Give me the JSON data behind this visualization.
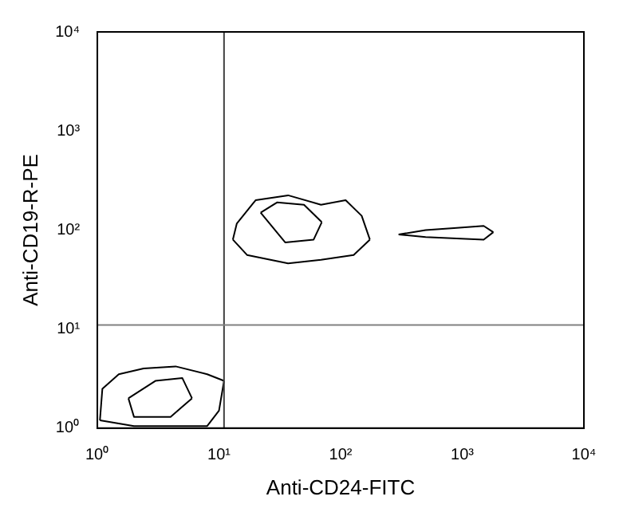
{
  "chart_data": {
    "type": "line",
    "xlabel": "Anti-CD24-FITC",
    "ylabel": "Anti-CD19-R-PE",
    "log": "xy",
    "grid": false,
    "legend": false,
    "marker": "none",
    "line_style": "solid",
    "xlim": [
      1,
      10000
    ],
    "ylim": [
      1,
      10000
    ],
    "xticks": [
      {
        "value": 1,
        "label": "10⁰"
      },
      {
        "value": 10,
        "label": "10¹"
      },
      {
        "value": 100,
        "label": "10²"
      },
      {
        "value": 1000,
        "label": "10³"
      },
      {
        "value": 10000,
        "label": "10⁴"
      }
    ],
    "yticks": [
      {
        "value": 1,
        "label": "10⁰"
      },
      {
        "value": 10,
        "label": "10¹"
      },
      {
        "value": 100,
        "label": "10²"
      },
      {
        "value": 1000,
        "label": "10³"
      },
      {
        "value": 10000,
        "label": "10⁴"
      }
    ],
    "ref_lines": [
      {
        "axis": "x",
        "value": 11,
        "color": "#404040"
      },
      {
        "axis": "y",
        "value": 11,
        "color": "#808080"
      }
    ],
    "series": [
      {
        "color": "#000000",
        "x": [
          13,
          14,
          20,
          37,
          69,
          110,
          149,
          174
        ],
        "values": [
          80,
          116,
          200,
          224,
          180,
          200,
          139,
          80
        ]
      },
      {
        "color": "#000000",
        "x": [
          13,
          17,
          37,
          69,
          128,
          174
        ],
        "values": [
          80,
          56,
          46,
          50,
          56,
          80
        ]
      },
      {
        "color": "#000000",
        "x": [
          22,
          30,
          50,
          70
        ],
        "values": [
          150,
          190,
          180,
          120
        ]
      },
      {
        "color": "#000000",
        "x": [
          22,
          35,
          60,
          70
        ],
        "values": [
          150,
          75,
          80,
          120
        ]
      },
      {
        "color": "#000000",
        "x": [
          300,
          500,
          900,
          1500,
          1800
        ],
        "values": [
          90,
          100,
          105,
          110,
          95
        ]
      },
      {
        "color": "#000000",
        "x": [
          300,
          500,
          900,
          1500,
          1800
        ],
        "values": [
          90,
          85,
          82,
          80,
          95
        ]
      },
      {
        "color": "#000000",
        "x": [
          1.05,
          1.1,
          1.5,
          2.4,
          4.4,
          8,
          11
        ],
        "values": [
          1.2,
          2.5,
          3.5,
          4,
          4.2,
          3.5,
          3
        ]
      },
      {
        "color": "#000000",
        "x": [
          1.05,
          2,
          4,
          8,
          10,
          11
        ],
        "values": [
          1.2,
          1.05,
          1.05,
          1.05,
          1.5,
          3
        ]
      },
      {
        "color": "#000000",
        "x": [
          1.8,
          3,
          5,
          6
        ],
        "values": [
          2,
          3,
          3.2,
          2
        ]
      },
      {
        "color": "#000000",
        "x": [
          1.8,
          2,
          4,
          6
        ],
        "values": [
          2,
          1.3,
          1.3,
          2
        ]
      }
    ]
  }
}
